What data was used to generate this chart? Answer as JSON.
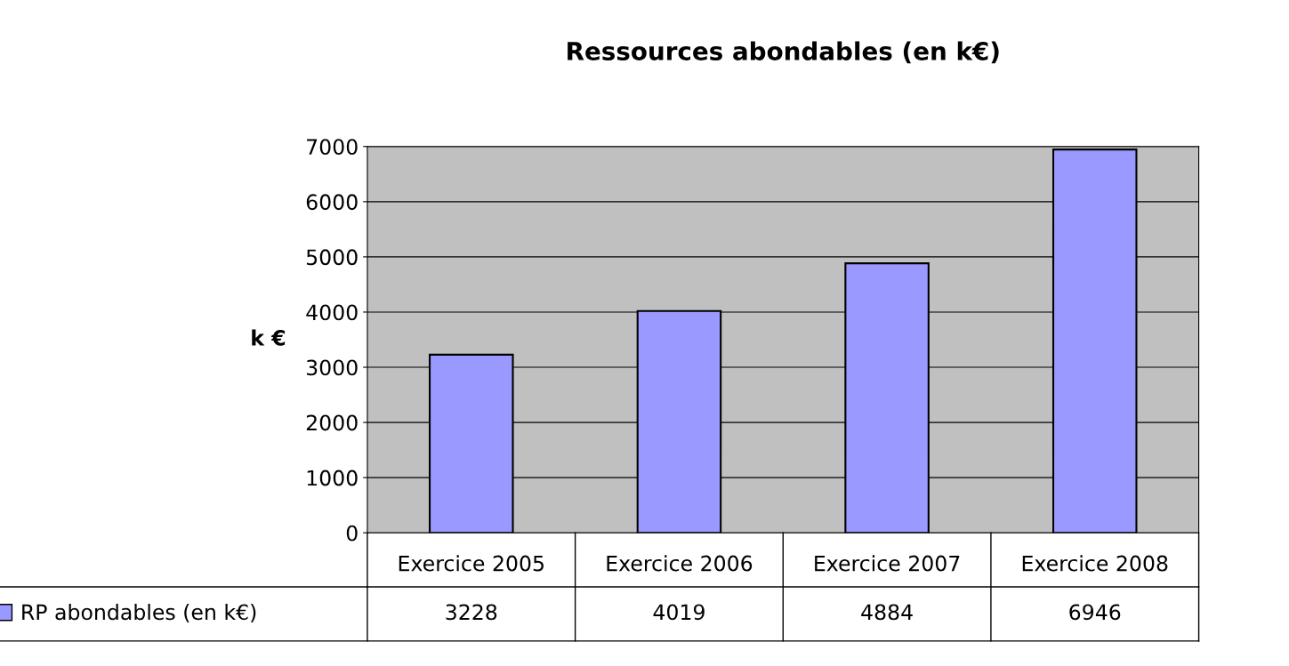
{
  "chart_data": {
    "type": "bar",
    "title": "Ressources abondables (en k€)",
    "ylabel": "k €",
    "categories": [
      "Exercice 2005",
      "Exercice 2006",
      "Exercice 2007",
      "Exercice 2008"
    ],
    "series": [
      {
        "name": "RP abondables (en k€)",
        "color": "#9999ff",
        "values": [
          3228,
          4019,
          4884,
          6946
        ]
      }
    ],
    "ylim": [
      0,
      7000
    ],
    "yticks": [
      0,
      1000,
      2000,
      3000,
      4000,
      5000,
      6000,
      7000
    ],
    "grid": "y",
    "legend": "bottom left",
    "data_labels": true
  }
}
